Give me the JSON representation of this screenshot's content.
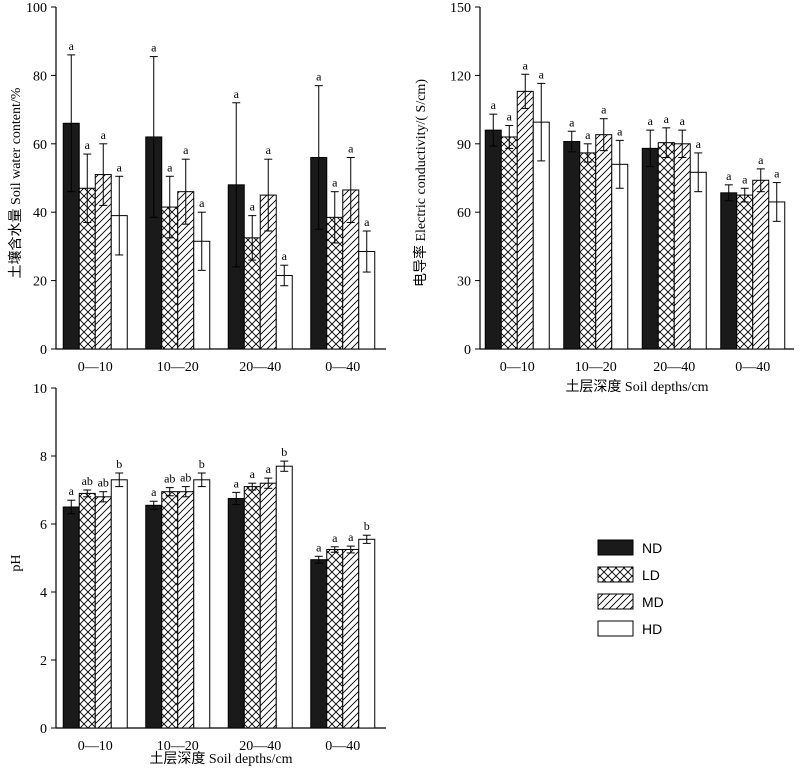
{
  "legend": {
    "items": [
      {
        "name": "ND",
        "pattern": "solid"
      },
      {
        "name": "LD",
        "pattern": "crosshatch"
      },
      {
        "name": "MD",
        "pattern": "diagonal"
      },
      {
        "name": "HD",
        "pattern": "empty"
      }
    ]
  },
  "colors": {
    "solid": "#1a1a1a",
    "outline": "#000000",
    "background": "#ffffff"
  },
  "chart_data": [
    {
      "type": "bar",
      "ylabel": "土壤含水量 Soil water content/%",
      "xlabel": "",
      "ylim": [
        0,
        100
      ],
      "yticks": [
        0,
        20,
        40,
        60,
        80,
        100
      ],
      "categories": [
        "0—10",
        "10—20",
        "20—40",
        "0—40"
      ],
      "series": [
        {
          "name": "ND",
          "values": [
            66,
            62,
            48,
            56
          ],
          "errors": [
            20,
            23.5,
            24,
            21
          ],
          "labels": [
            "a",
            "a",
            "a",
            "a"
          ]
        },
        {
          "name": "LD",
          "values": [
            47,
            41.5,
            32.5,
            38.5
          ],
          "errors": [
            10,
            9,
            6.5,
            7.5
          ],
          "labels": [
            "a",
            "a",
            "a",
            "a"
          ]
        },
        {
          "name": "MD",
          "values": [
            51,
            46,
            45,
            46.5
          ],
          "errors": [
            9,
            9.5,
            10.5,
            9.5
          ],
          "labels": [
            "a",
            "a",
            "a",
            "a"
          ]
        },
        {
          "name": "HD",
          "values": [
            39,
            31.5,
            21.5,
            28.5
          ],
          "errors": [
            11.5,
            8.5,
            3,
            6
          ],
          "labels": [
            "a",
            "a",
            "a",
            "a"
          ]
        }
      ]
    },
    {
      "type": "bar",
      "ylabel": "电导率 Electric conductivity/( S/cm)",
      "xlabel": "土层深度 Soil depths/cm",
      "ylim": [
        0,
        150
      ],
      "yticks": [
        0,
        30,
        60,
        90,
        120,
        150
      ],
      "categories": [
        "0—10",
        "10—20",
        "20—40",
        "0—40"
      ],
      "series": [
        {
          "name": "ND",
          "values": [
            96,
            91,
            88,
            68.5
          ],
          "errors": [
            7,
            4.5,
            8,
            3.5
          ],
          "labels": [
            "a",
            "a",
            "a",
            "a"
          ]
        },
        {
          "name": "LD",
          "values": [
            93,
            86,
            90.5,
            67.5
          ],
          "errors": [
            5,
            4,
            6.5,
            3
          ],
          "labels": [
            "a",
            "a",
            "a",
            "a"
          ]
        },
        {
          "name": "MD",
          "values": [
            113,
            94,
            90,
            74
          ],
          "errors": [
            7.5,
            7,
            6,
            5
          ],
          "labels": [
            "a",
            "a",
            "a",
            "a"
          ]
        },
        {
          "name": "HD",
          "values": [
            99.5,
            81,
            77.5,
            64.5
          ],
          "errors": [
            17,
            10.5,
            8.5,
            8.5
          ],
          "labels": [
            "a",
            "a",
            "a",
            "a"
          ]
        }
      ]
    },
    {
      "type": "bar",
      "ylabel": "pH",
      "xlabel": "土层深度 Soil depths/cm",
      "ylim": [
        0,
        10
      ],
      "yticks": [
        0,
        2,
        4,
        6,
        8,
        10
      ],
      "categories": [
        "0—10",
        "10—20",
        "20—40",
        "0—40"
      ],
      "series": [
        {
          "name": "ND",
          "values": [
            6.5,
            6.55,
            6.75,
            4.95
          ],
          "errors": [
            0.2,
            0.12,
            0.18,
            0.1
          ],
          "labels": [
            "a",
            "a",
            "a",
            "a"
          ]
        },
        {
          "name": "LD",
          "values": [
            6.9,
            6.95,
            7.1,
            5.25
          ],
          "errors": [
            0.1,
            0.12,
            0.1,
            0.08
          ],
          "labels": [
            "ab",
            "ab",
            "a",
            "a"
          ]
        },
        {
          "name": "MD",
          "values": [
            6.8,
            6.95,
            7.2,
            5.25
          ],
          "errors": [
            0.15,
            0.15,
            0.15,
            0.1
          ],
          "labels": [
            "ab",
            "ab",
            "a",
            "a"
          ]
        },
        {
          "name": "HD",
          "values": [
            7.3,
            7.3,
            7.7,
            5.55
          ],
          "errors": [
            0.2,
            0.2,
            0.15,
            0.12
          ],
          "labels": [
            "b",
            "b",
            "b",
            "b"
          ]
        }
      ]
    }
  ]
}
